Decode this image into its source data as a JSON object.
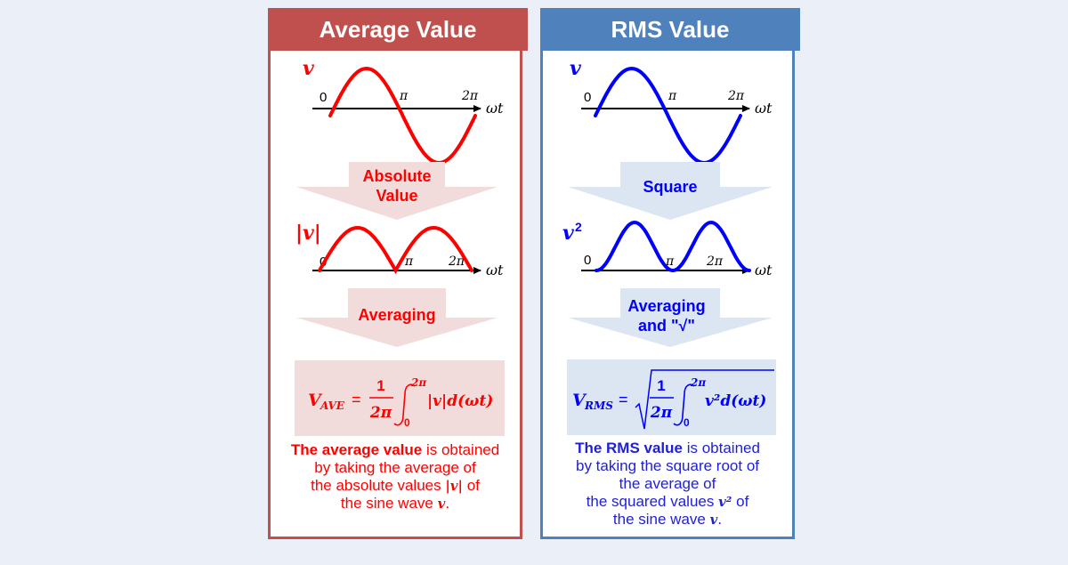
{
  "average": {
    "title": "Average Value",
    "var_v": "v",
    "var_abs": "|v|",
    "zero": "0",
    "pi": "π",
    "two_pi": "2π",
    "omega_t": "ωt",
    "step1": [
      "Absolute",
      "Value"
    ],
    "step2": "Averaging",
    "formula": {
      "lhs": "V",
      "sub": "AVE",
      "eq": "=",
      "num": "1",
      "den": "2π",
      "upper": "2π",
      "lower": "0",
      "integrand": "|v|d(ωt)"
    },
    "desc": {
      "bold": "The average value",
      "line1_rest": " is obtained",
      "line2": "by taking the average of",
      "line3_pre": "the absolute values ",
      "line3_var": "|v|",
      "line3_post": " of",
      "line4_pre": "the sine wave ",
      "line4_var": "v",
      "line4_post": "."
    },
    "colors": {
      "accent": "#ff0000",
      "frame": "#c0504d",
      "arrow": "#f2dcdb"
    }
  },
  "rms": {
    "title": "RMS Value",
    "var_v": "v",
    "var_sq_base": "v",
    "var_sq_exp": "2",
    "zero": "0",
    "pi": "π",
    "two_pi": "2π",
    "omega_t": "ωt",
    "step1": "Square",
    "step2": [
      "Averaging",
      "and \"√\""
    ],
    "formula": {
      "lhs": "V",
      "sub": "RMS",
      "eq": "=",
      "num": "1",
      "den": "2π",
      "upper": "2π",
      "lower": "0",
      "integrand": "v²d(ωt)"
    },
    "desc": {
      "bold": "The RMS value",
      "line1_rest": " is obtained",
      "line2": "by taking the square root of",
      "line3": "the average of",
      "line4_pre": "the squared values ",
      "line4_var": "v²",
      "line4_post": " of",
      "line5_pre": "the sine wave ",
      "line5_var": "v",
      "line5_post": "."
    },
    "colors": {
      "accent": "#0000ff",
      "frame": "#4f81bd",
      "arrow": "#dce6f2"
    }
  }
}
